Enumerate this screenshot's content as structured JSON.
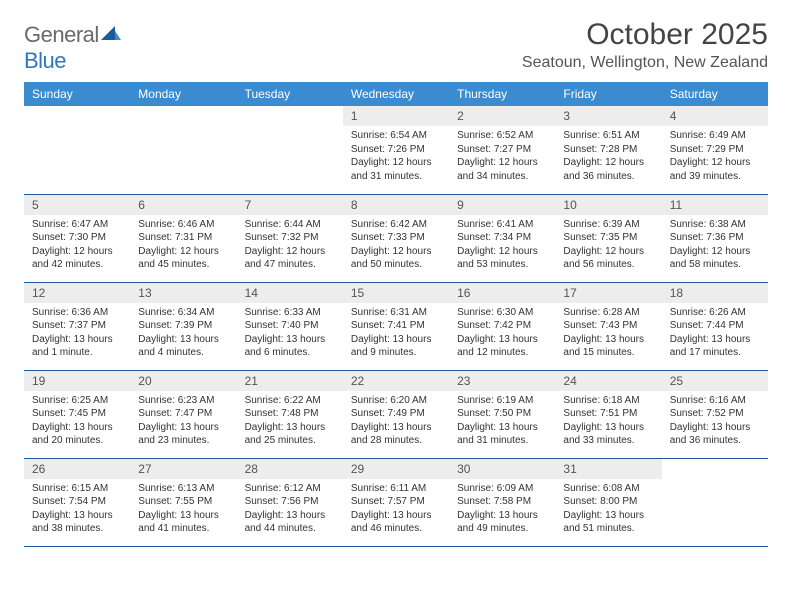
{
  "brand": {
    "part1": "General",
    "part2": "Blue"
  },
  "title": "October 2025",
  "location": "Seatoun, Wellington, New Zealand",
  "colors": {
    "header_bg": "#3b8bd0",
    "header_text": "#ffffff",
    "row_divider": "#1e5a99",
    "daynum_bg": "#ededed",
    "brand_gray": "#6a6a6a",
    "brand_blue": "#3176bd"
  },
  "weekdays": [
    "Sunday",
    "Monday",
    "Tuesday",
    "Wednesday",
    "Thursday",
    "Friday",
    "Saturday"
  ],
  "weeks": [
    [
      {
        "empty": true
      },
      {
        "empty": true
      },
      {
        "empty": true
      },
      {
        "num": "1",
        "sunrise": "Sunrise: 6:54 AM",
        "sunset": "Sunset: 7:26 PM",
        "day1": "Daylight: 12 hours",
        "day2": "and 31 minutes."
      },
      {
        "num": "2",
        "sunrise": "Sunrise: 6:52 AM",
        "sunset": "Sunset: 7:27 PM",
        "day1": "Daylight: 12 hours",
        "day2": "and 34 minutes."
      },
      {
        "num": "3",
        "sunrise": "Sunrise: 6:51 AM",
        "sunset": "Sunset: 7:28 PM",
        "day1": "Daylight: 12 hours",
        "day2": "and 36 minutes."
      },
      {
        "num": "4",
        "sunrise": "Sunrise: 6:49 AM",
        "sunset": "Sunset: 7:29 PM",
        "day1": "Daylight: 12 hours",
        "day2": "and 39 minutes."
      }
    ],
    [
      {
        "num": "5",
        "sunrise": "Sunrise: 6:47 AM",
        "sunset": "Sunset: 7:30 PM",
        "day1": "Daylight: 12 hours",
        "day2": "and 42 minutes."
      },
      {
        "num": "6",
        "sunrise": "Sunrise: 6:46 AM",
        "sunset": "Sunset: 7:31 PM",
        "day1": "Daylight: 12 hours",
        "day2": "and 45 minutes."
      },
      {
        "num": "7",
        "sunrise": "Sunrise: 6:44 AM",
        "sunset": "Sunset: 7:32 PM",
        "day1": "Daylight: 12 hours",
        "day2": "and 47 minutes."
      },
      {
        "num": "8",
        "sunrise": "Sunrise: 6:42 AM",
        "sunset": "Sunset: 7:33 PM",
        "day1": "Daylight: 12 hours",
        "day2": "and 50 minutes."
      },
      {
        "num": "9",
        "sunrise": "Sunrise: 6:41 AM",
        "sunset": "Sunset: 7:34 PM",
        "day1": "Daylight: 12 hours",
        "day2": "and 53 minutes."
      },
      {
        "num": "10",
        "sunrise": "Sunrise: 6:39 AM",
        "sunset": "Sunset: 7:35 PM",
        "day1": "Daylight: 12 hours",
        "day2": "and 56 minutes."
      },
      {
        "num": "11",
        "sunrise": "Sunrise: 6:38 AM",
        "sunset": "Sunset: 7:36 PM",
        "day1": "Daylight: 12 hours",
        "day2": "and 58 minutes."
      }
    ],
    [
      {
        "num": "12",
        "sunrise": "Sunrise: 6:36 AM",
        "sunset": "Sunset: 7:37 PM",
        "day1": "Daylight: 13 hours",
        "day2": "and 1 minute."
      },
      {
        "num": "13",
        "sunrise": "Sunrise: 6:34 AM",
        "sunset": "Sunset: 7:39 PM",
        "day1": "Daylight: 13 hours",
        "day2": "and 4 minutes."
      },
      {
        "num": "14",
        "sunrise": "Sunrise: 6:33 AM",
        "sunset": "Sunset: 7:40 PM",
        "day1": "Daylight: 13 hours",
        "day2": "and 6 minutes."
      },
      {
        "num": "15",
        "sunrise": "Sunrise: 6:31 AM",
        "sunset": "Sunset: 7:41 PM",
        "day1": "Daylight: 13 hours",
        "day2": "and 9 minutes."
      },
      {
        "num": "16",
        "sunrise": "Sunrise: 6:30 AM",
        "sunset": "Sunset: 7:42 PM",
        "day1": "Daylight: 13 hours",
        "day2": "and 12 minutes."
      },
      {
        "num": "17",
        "sunrise": "Sunrise: 6:28 AM",
        "sunset": "Sunset: 7:43 PM",
        "day1": "Daylight: 13 hours",
        "day2": "and 15 minutes."
      },
      {
        "num": "18",
        "sunrise": "Sunrise: 6:26 AM",
        "sunset": "Sunset: 7:44 PM",
        "day1": "Daylight: 13 hours",
        "day2": "and 17 minutes."
      }
    ],
    [
      {
        "num": "19",
        "sunrise": "Sunrise: 6:25 AM",
        "sunset": "Sunset: 7:45 PM",
        "day1": "Daylight: 13 hours",
        "day2": "and 20 minutes."
      },
      {
        "num": "20",
        "sunrise": "Sunrise: 6:23 AM",
        "sunset": "Sunset: 7:47 PM",
        "day1": "Daylight: 13 hours",
        "day2": "and 23 minutes."
      },
      {
        "num": "21",
        "sunrise": "Sunrise: 6:22 AM",
        "sunset": "Sunset: 7:48 PM",
        "day1": "Daylight: 13 hours",
        "day2": "and 25 minutes."
      },
      {
        "num": "22",
        "sunrise": "Sunrise: 6:20 AM",
        "sunset": "Sunset: 7:49 PM",
        "day1": "Daylight: 13 hours",
        "day2": "and 28 minutes."
      },
      {
        "num": "23",
        "sunrise": "Sunrise: 6:19 AM",
        "sunset": "Sunset: 7:50 PM",
        "day1": "Daylight: 13 hours",
        "day2": "and 31 minutes."
      },
      {
        "num": "24",
        "sunrise": "Sunrise: 6:18 AM",
        "sunset": "Sunset: 7:51 PM",
        "day1": "Daylight: 13 hours",
        "day2": "and 33 minutes."
      },
      {
        "num": "25",
        "sunrise": "Sunrise: 6:16 AM",
        "sunset": "Sunset: 7:52 PM",
        "day1": "Daylight: 13 hours",
        "day2": "and 36 minutes."
      }
    ],
    [
      {
        "num": "26",
        "sunrise": "Sunrise: 6:15 AM",
        "sunset": "Sunset: 7:54 PM",
        "day1": "Daylight: 13 hours",
        "day2": "and 38 minutes."
      },
      {
        "num": "27",
        "sunrise": "Sunrise: 6:13 AM",
        "sunset": "Sunset: 7:55 PM",
        "day1": "Daylight: 13 hours",
        "day2": "and 41 minutes."
      },
      {
        "num": "28",
        "sunrise": "Sunrise: 6:12 AM",
        "sunset": "Sunset: 7:56 PM",
        "day1": "Daylight: 13 hours",
        "day2": "and 44 minutes."
      },
      {
        "num": "29",
        "sunrise": "Sunrise: 6:11 AM",
        "sunset": "Sunset: 7:57 PM",
        "day1": "Daylight: 13 hours",
        "day2": "and 46 minutes."
      },
      {
        "num": "30",
        "sunrise": "Sunrise: 6:09 AM",
        "sunset": "Sunset: 7:58 PM",
        "day1": "Daylight: 13 hours",
        "day2": "and 49 minutes."
      },
      {
        "num": "31",
        "sunrise": "Sunrise: 6:08 AM",
        "sunset": "Sunset: 8:00 PM",
        "day1": "Daylight: 13 hours",
        "day2": "and 51 minutes."
      },
      {
        "empty": true
      }
    ]
  ]
}
